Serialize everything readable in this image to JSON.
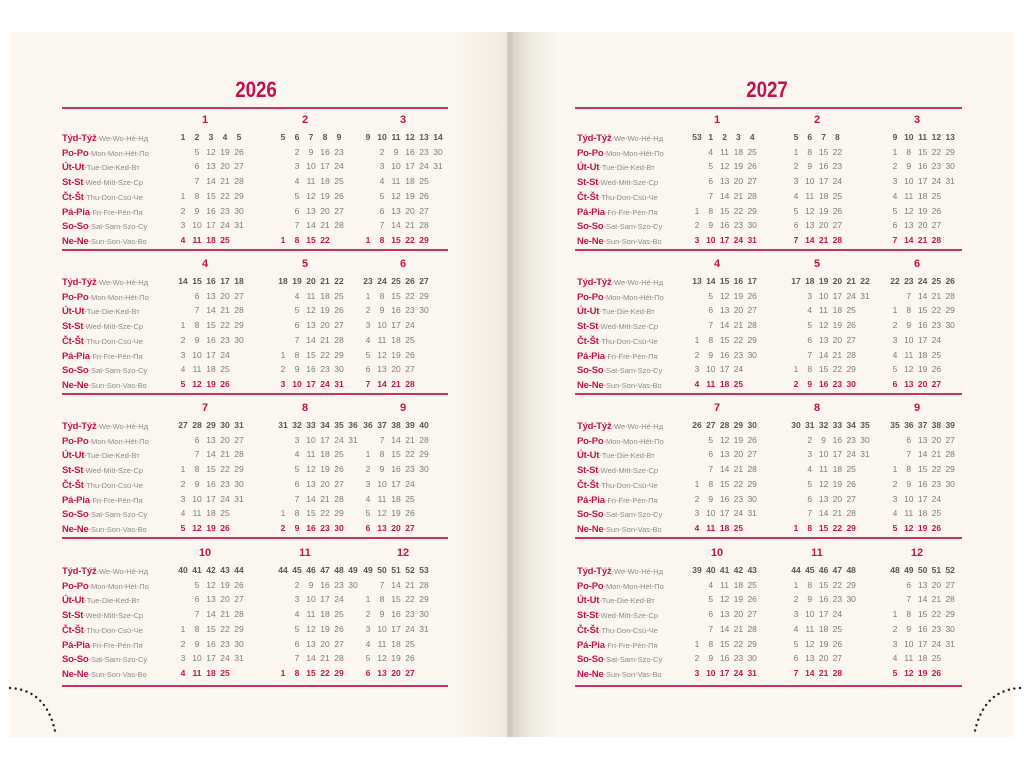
{
  "day_labels": [
    {
      "short": "Týd-Týž",
      "long": "-We-Wo-Hé-Нд"
    },
    {
      "short": "Po-Po",
      "long": "-Mon-Mon-Hét-По"
    },
    {
      "short": "Út-Ut",
      "long": "-Tue-Die-Ked-Вт"
    },
    {
      "short": "St-St",
      "long": "-Wed-Mitt-Sze-Ср"
    },
    {
      "short": "Čt-Št",
      "long": "-Thu-Don-Csü-Че"
    },
    {
      "short": "Pá-Pia",
      "long": "-Fri-Fre-Pén-Пя"
    },
    {
      "short": "So-So",
      "long": "-Sat-Sam-Szo-Cy"
    },
    {
      "short": "Ne-Ne",
      "long": "-Sun-Son-Vas-Bo"
    }
  ],
  "colors": {
    "accent": "#c4104d",
    "paper": "#fcf7ee"
  },
  "pages": [
    {
      "year": "2026",
      "months": [
        {
          "label": "1",
          "weeks": "1 2 3 4 5",
          "rows": [
            "_ 5 12 19 26",
            "_ 6 13 20 27",
            "_ 7 14 21 28",
            "1 8 15 22 29",
            "2 9 16 23 30",
            "3 10 17 24 31",
            "4 11 18 25"
          ]
        },
        {
          "label": "2",
          "weeks": "5 6 7 8 9",
          "rows": [
            "_ 2 9 16 23",
            "_ 3 10 17 24",
            "_ 4 11 18 25",
            "_ 5 12 19 26",
            "_ 6 13 20 27",
            "_ 7 14 21 28",
            "1 8 15 22"
          ]
        },
        {
          "label": "3",
          "weeks": "9 10 11 12 13 14",
          "rows": [
            "_ 2 9 16 23 30",
            "_ 3 10 17 24 31",
            "_ 4 11 18 25",
            "_ 5 12 19 26",
            "_ 6 13 20 27",
            "_ 7 14 21 28",
            "1 8 15 22 29"
          ]
        },
        {
          "label": "4",
          "weeks": "14 15 16 17 18",
          "rows": [
            "_ 6 13 20 27",
            "_ 7 14 21 28",
            "1 8 15 22 29",
            "2 9 16 23 30",
            "3 10 17 24",
            "4 11 18 25",
            "5 12 19 26"
          ]
        },
        {
          "label": "5",
          "weeks": "18 19 20 21 22",
          "rows": [
            "_ 4 11 18 25",
            "_ 5 12 19 26",
            "_ 6 13 20 27",
            "_ 7 14 21 28",
            "1 8 15 22 29",
            "2 9 16 23 30",
            "3 10 17 24 31"
          ]
        },
        {
          "label": "6",
          "weeks": "23 24 25 26 27",
          "rows": [
            "1 8 15 22 29",
            "2 9 16 23 30",
            "3 10 17 24",
            "4 11 18 25",
            "5 12 19 26",
            "6 13 20 27",
            "7 14 21 28"
          ]
        },
        {
          "label": "7",
          "weeks": "27 28 29 30 31",
          "rows": [
            "_ 6 13 20 27",
            "_ 7 14 21 28",
            "1 8 15 22 29",
            "2 9 16 23 30",
            "3 10 17 24 31",
            "4 11 18 25",
            "5 12 19 26"
          ]
        },
        {
          "label": "8",
          "weeks": "31 32 33 34 35 36",
          "rows": [
            "_ 3 10 17 24 31",
            "_ 4 11 18 25",
            "_ 5 12 19 26",
            "_ 6 13 20 27",
            "_ 7 14 21 28",
            "1 8 15 22 29",
            "2 9 16 23 30"
          ]
        },
        {
          "label": "9",
          "weeks": "36 37 38 39 40",
          "rows": [
            "_ 7 14 21 28",
            "1 8 15 22 29",
            "2 9 16 23 30",
            "3 10 17 24",
            "4 11 18 25",
            "5 12 19 26",
            "6 13 20 27"
          ]
        },
        {
          "label": "10",
          "weeks": "40 41 42 43 44",
          "rows": [
            "_ 5 12 19 26",
            "_ 6 13 20 27",
            "_ 7 14 21 28",
            "1 8 15 22 29",
            "2 9 16 23 30",
            "3 10 17 24 31",
            "4 11 18 25"
          ]
        },
        {
          "label": "11",
          "weeks": "44 45 46 47 48 49",
          "rows": [
            "_ 2 9 16 23 30",
            "_ 3 10 17 24",
            "_ 4 11 18 25",
            "_ 5 12 19 26",
            "_ 6 13 20 27",
            "_ 7 14 21 28",
            "1 8 15 22 29"
          ]
        },
        {
          "label": "12",
          "weeks": "49 50 51 52 53",
          "rows": [
            "_ 7 14 21 28",
            "1 8 15 22 29",
            "2 9 16 23 30",
            "3 10 17 24 31",
            "4 11 18 25",
            "5 12 19 26",
            "6 13 20 27"
          ]
        }
      ]
    },
    {
      "year": "2027",
      "months": [
        {
          "label": "1",
          "weeks": "53 1 2 3 4",
          "rows": [
            "_ 4 11 18 25",
            "_ 5 12 19 26",
            "_ 6 13 20 27",
            "_ 7 14 21 28",
            "1 8 15 22 29",
            "2 9 16 23 30",
            "3 10 17 24 31"
          ]
        },
        {
          "label": "2",
          "weeks": "5 6 7 8",
          "rows": [
            "1 8 15 22",
            "2 9 16 23",
            "3 10 17 24",
            "4 11 18 25",
            "5 12 19 26",
            "6 13 20 27",
            "7 14 21 28"
          ]
        },
        {
          "label": "3",
          "weeks": "9 10 11 12 13",
          "rows": [
            "1 8 15 22 29",
            "2 9 16 23 30",
            "3 10 17 24 31",
            "4 11 18 25",
            "5 12 19 26",
            "6 13 20 27",
            "7 14 21 28"
          ]
        },
        {
          "label": "4",
          "weeks": "13 14 15 16 17",
          "rows": [
            "_ 5 12 19 26",
            "_ 6 13 20 27",
            "_ 7 14 21 28",
            "1 8 15 22 29",
            "2 9 16 23 30",
            "3 10 17 24",
            "4 11 18 25"
          ]
        },
        {
          "label": "5",
          "weeks": "17 18 19 20 21 22",
          "rows": [
            "_ 3 10 17 24 31",
            "_ 4 11 18 25",
            "_ 5 12 19 26",
            "_ 6 13 20 27",
            "_ 7 14 21 28",
            "1 8 15 22 29",
            "2 9 16 23 30"
          ]
        },
        {
          "label": "6",
          "weeks": "22 23 24 25 26",
          "rows": [
            "_ 7 14 21 28",
            "1 8 15 22 29",
            "2 9 16 23 30",
            "3 10 17 24",
            "4 11 18 25",
            "5 12 19 26",
            "6 13 20 27"
          ]
        },
        {
          "label": "7",
          "weeks": "26 27 28 29 30",
          "rows": [
            "_ 5 12 19 26",
            "_ 6 13 20 27",
            "_ 7 14 21 28",
            "1 8 15 22 29",
            "2 9 16 23 30",
            "3 10 17 24 31",
            "4 11 18 25"
          ]
        },
        {
          "label": "8",
          "weeks": "30 31 32 33 34 35",
          "rows": [
            "_ 2 9 16 23 30",
            "_ 3 10 17 24 31",
            "_ 4 11 18 25",
            "_ 5 12 19 26",
            "_ 6 13 20 27",
            "_ 7 14 21 28",
            "1 8 15 22 29"
          ]
        },
        {
          "label": "9",
          "weeks": "35 36 37 38 39",
          "rows": [
            "_ 6 13 20 27",
            "_ 7 14 21 28",
            "1 8 15 22 29",
            "2 9 16 23 30",
            "3 10 17 24",
            "4 11 18 25",
            "5 12 19 26"
          ]
        },
        {
          "label": "10",
          "weeks": "39 40 41 42 43",
          "rows": [
            "_ 4 11 18 25",
            "_ 5 12 19 26",
            "_ 6 13 20 27",
            "_ 7 14 21 28",
            "1 8 15 22 29",
            "2 9 16 23 30",
            "3 10 17 24 31"
          ]
        },
        {
          "label": "11",
          "weeks": "44 45 46 47 48",
          "rows": [
            "1 8 15 22 29",
            "2 9 16 23 30",
            "3 10 17 24",
            "4 11 18 25",
            "5 12 19 26",
            "6 13 20 27",
            "7 14 21 28"
          ]
        },
        {
          "label": "12",
          "weeks": "48 49 50 51 52",
          "rows": [
            "_ 6 13 20 27",
            "_ 7 14 21 28",
            "1 8 15 22 29",
            "2 9 16 23 30",
            "3 10 17 24 31",
            "4 11 18 25",
            "5 12 19 26"
          ]
        }
      ]
    }
  ]
}
